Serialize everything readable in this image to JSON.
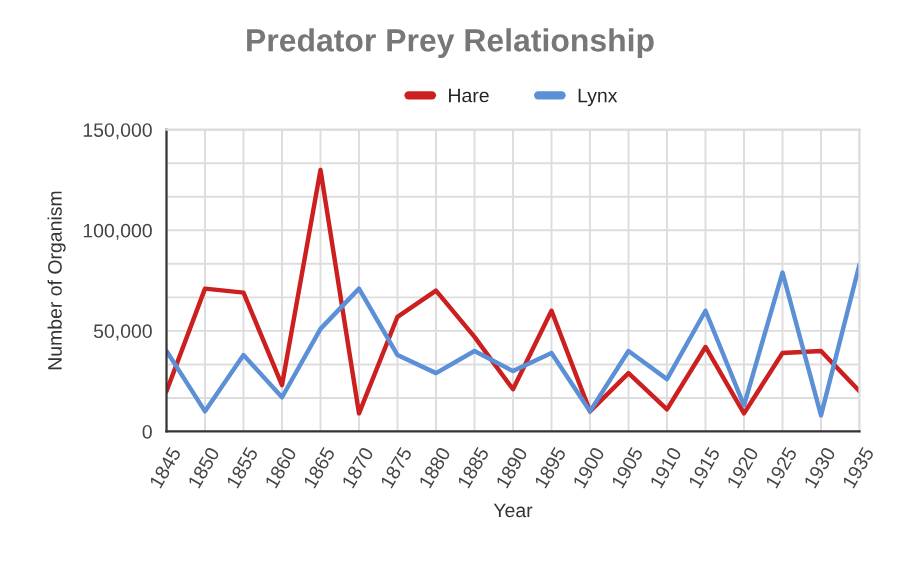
{
  "chart_data": {
    "type": "line",
    "title": "Predator Prey Relationship",
    "xlabel": "Year",
    "ylabel": "Number of Organism",
    "x": [
      1845,
      1850,
      1855,
      1860,
      1865,
      1870,
      1875,
      1880,
      1885,
      1890,
      1895,
      1900,
      1905,
      1910,
      1915,
      1920,
      1925,
      1930,
      1935
    ],
    "series": [
      {
        "name": "Hare",
        "color": "#cc1f1f",
        "values": [
          20000,
          71000,
          69000,
          23000,
          130000,
          9000,
          57000,
          70000,
          47000,
          21000,
          60000,
          10000,
          29000,
          11000,
          42000,
          9000,
          39000,
          40000,
          20000
        ]
      },
      {
        "name": "Lynx",
        "color": "#5b8fd6",
        "values": [
          40000,
          10000,
          38000,
          17000,
          51000,
          71000,
          38000,
          29000,
          40000,
          30000,
          39000,
          10000,
          40000,
          26000,
          60000,
          13000,
          79000,
          8000,
          83000
        ]
      }
    ],
    "xlim": [
      1845,
      1935
    ],
    "xticks": [
      1845,
      1850,
      1855,
      1860,
      1865,
      1870,
      1875,
      1880,
      1885,
      1890,
      1895,
      1900,
      1905,
      1910,
      1915,
      1920,
      1925,
      1930,
      1935
    ],
    "ylim": [
      0,
      150000
    ],
    "yticks": [
      {
        "value": 0,
        "label": "0"
      },
      {
        "value": 16667,
        "label": null
      },
      {
        "value": 33333,
        "label": null
      },
      {
        "value": 50000,
        "label": "50,000"
      },
      {
        "value": 66667,
        "label": null
      },
      {
        "value": 83333,
        "label": null
      },
      {
        "value": 100000,
        "label": "100,000"
      },
      {
        "value": 116667,
        "label": null
      },
      {
        "value": 133333,
        "label": null
      },
      {
        "value": 150000,
        "label": "150,000"
      }
    ],
    "grid": true,
    "legend": "top",
    "marker": "none",
    "line_style": "solid"
  }
}
